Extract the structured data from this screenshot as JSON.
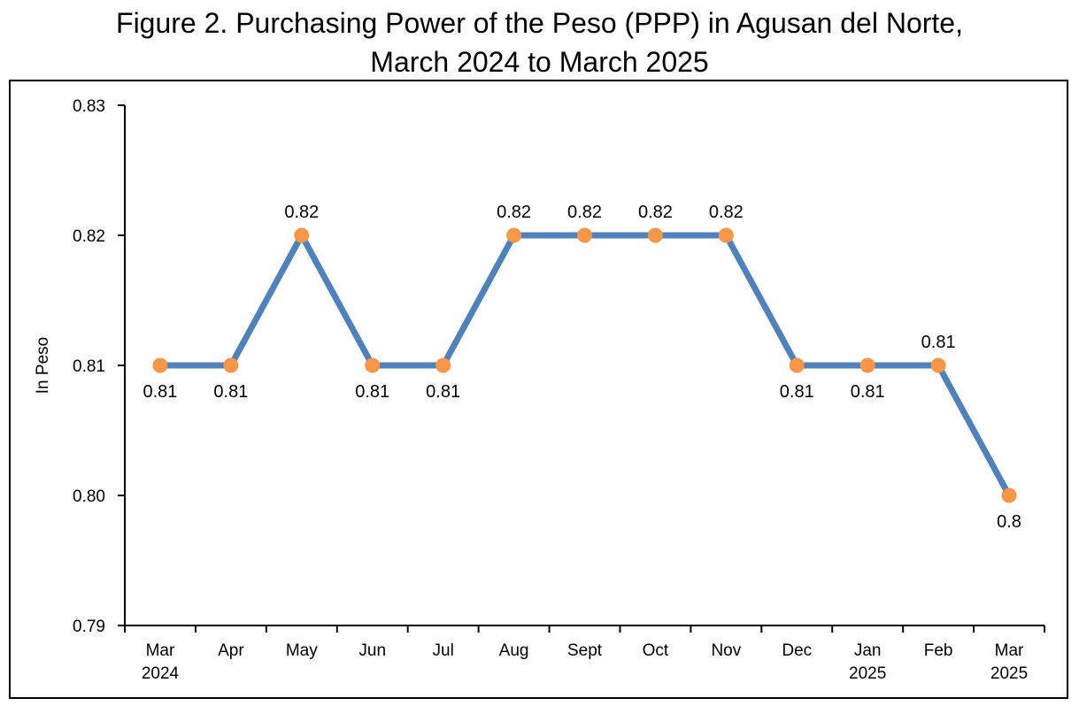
{
  "chart_data": {
    "type": "line",
    "title_line1": "Figure 2. Purchasing Power of the Peso (PPP) in Agusan del Norte,",
    "title_line2": "March 2024 to March 2025",
    "ylabel": "In Peso",
    "xlabel": "",
    "ylim": [
      0.79,
      0.83
    ],
    "y_ticks": [
      "0.79",
      "0.80",
      "0.81",
      "0.82",
      "0.83"
    ],
    "y_tick_values": [
      0.79,
      0.8,
      0.81,
      0.82,
      0.83
    ],
    "categories": [
      [
        "Mar",
        "2024"
      ],
      [
        "Apr"
      ],
      [
        "May"
      ],
      [
        "Jun"
      ],
      [
        "Jul"
      ],
      [
        "Aug"
      ],
      [
        "Sept"
      ],
      [
        "Oct"
      ],
      [
        "Nov"
      ],
      [
        "Dec"
      ],
      [
        "Jan",
        "2025"
      ],
      [
        "Feb"
      ],
      [
        "Mar",
        "2025"
      ]
    ],
    "series": [
      {
        "values": [
          0.81,
          0.81,
          0.82,
          0.81,
          0.81,
          0.82,
          0.82,
          0.82,
          0.82,
          0.81,
          0.81,
          0.81,
          0.8
        ],
        "data_labels": [
          "0.81",
          "0.81",
          "0.82",
          "0.81",
          "0.81",
          "0.82",
          "0.82",
          "0.82",
          "0.82",
          "0.81",
          "0.81",
          "0.81",
          "0.8"
        ],
        "label_positions": [
          "below",
          "below",
          "above",
          "below",
          "below",
          "above",
          "above",
          "above",
          "above",
          "below",
          "below",
          "above",
          "below"
        ]
      }
    ],
    "line_color": "#4F81BD",
    "marker_color": "#F79646",
    "grid": false,
    "legend": "none"
  }
}
